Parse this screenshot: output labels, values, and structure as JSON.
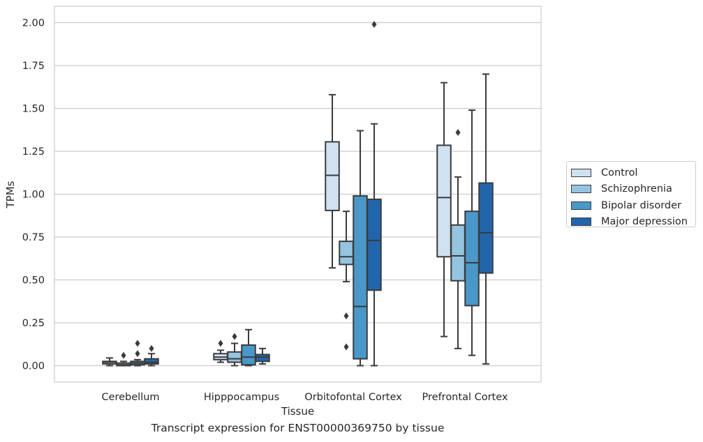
{
  "caption": "Transcript expression for ENST00000369750 by tissue",
  "chart_data": {
    "type": "box",
    "xlabel": "Tissue",
    "ylabel": "TPMs",
    "ylim": [
      -0.1,
      2.1
    ],
    "yticks": [
      "0.00",
      "0.25",
      "0.50",
      "0.75",
      "1.00",
      "1.25",
      "1.50",
      "1.75",
      "2.00"
    ],
    "grid": "horizontal",
    "legend_position": "right",
    "categories": [
      "Cerebellum",
      "Hipppocampus",
      "Orbitofontal Cortex",
      "Prefrontal Cortex"
    ],
    "series": [
      {
        "name": "Control",
        "color": "#d0e1f2",
        "boxes": [
          {
            "whislo": 0.0,
            "q1": 0.01,
            "med": 0.02,
            "q3": 0.025,
            "whishi": 0.045,
            "fliers": []
          },
          {
            "whislo": 0.02,
            "q1": 0.035,
            "med": 0.05,
            "q3": 0.07,
            "whishi": 0.09,
            "fliers": [
              0.13
            ]
          },
          {
            "whislo": 0.57,
            "q1": 0.905,
            "med": 1.11,
            "q3": 1.305,
            "whishi": 1.58,
            "fliers": []
          },
          {
            "whislo": 0.17,
            "q1": 0.635,
            "med": 0.98,
            "q3": 1.285,
            "whishi": 1.65,
            "fliers": []
          }
        ]
      },
      {
        "name": "Schizophrenia",
        "color": "#94c4df",
        "boxes": [
          {
            "whislo": 0.0,
            "q1": 0.0,
            "med": 0.005,
            "q3": 0.015,
            "whishi": 0.025,
            "fliers": [
              0.06
            ]
          },
          {
            "whislo": 0.0,
            "q1": 0.02,
            "med": 0.04,
            "q3": 0.08,
            "whishi": 0.13,
            "fliers": [
              0.17
            ]
          },
          {
            "whislo": 0.49,
            "q1": 0.59,
            "med": 0.635,
            "q3": 0.725,
            "whishi": 0.9,
            "fliers": [
              0.29,
              0.11
            ]
          },
          {
            "whislo": 0.1,
            "q1": 0.495,
            "med": 0.64,
            "q3": 0.82,
            "whishi": 1.1,
            "fliers": [
              1.36
            ]
          }
        ]
      },
      {
        "name": "Bipolar disorder",
        "color": "#4a98c9",
        "boxes": [
          {
            "whislo": 0.0,
            "q1": 0.005,
            "med": 0.015,
            "q3": 0.025,
            "whishi": 0.035,
            "fliers": [
              0.07,
              0.13
            ]
          },
          {
            "whislo": 0.0,
            "q1": 0.005,
            "med": 0.05,
            "q3": 0.12,
            "whishi": 0.21,
            "fliers": []
          },
          {
            "whislo": 0.0,
            "q1": 0.04,
            "med": 0.345,
            "q3": 0.99,
            "whishi": 1.37,
            "fliers": []
          },
          {
            "whislo": 0.06,
            "q1": 0.35,
            "med": 0.6,
            "q3": 0.9,
            "whishi": 1.49,
            "fliers": []
          }
        ]
      },
      {
        "name": "Major depression",
        "color": "#2166ac",
        "boxes": [
          {
            "whislo": 0.0,
            "q1": 0.01,
            "med": 0.02,
            "q3": 0.04,
            "whishi": 0.07,
            "fliers": [
              0.1
            ]
          },
          {
            "whislo": 0.01,
            "q1": 0.025,
            "med": 0.05,
            "q3": 0.065,
            "whishi": 0.1,
            "fliers": []
          },
          {
            "whislo": 0.0,
            "q1": 0.44,
            "med": 0.73,
            "q3": 0.97,
            "whishi": 1.41,
            "fliers": [
              1.99
            ]
          },
          {
            "whislo": 0.01,
            "q1": 0.54,
            "med": 0.775,
            "q3": 1.065,
            "whishi": 1.7,
            "fliers": []
          }
        ]
      }
    ]
  }
}
